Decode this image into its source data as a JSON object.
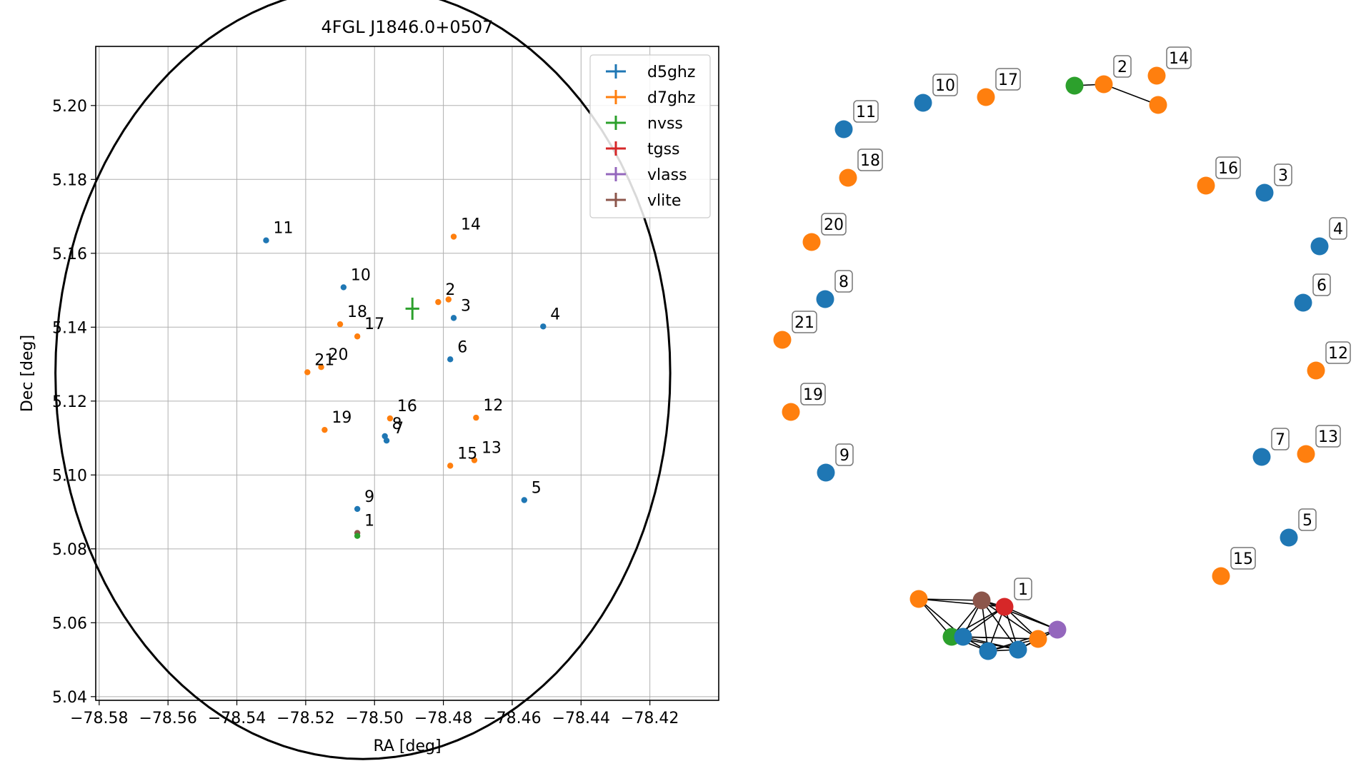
{
  "chart_data": [
    {
      "type": "scatter",
      "title": "4FGL J1846.0+0507",
      "xlabel": "RA [deg]",
      "ylabel": "Dec [deg]",
      "xlim": [
        -78.581,
        -78.4
      ],
      "ylim": [
        5.039,
        5.216
      ],
      "xticks": [
        -78.58,
        -78.56,
        -78.54,
        -78.52,
        -78.5,
        -78.48,
        -78.46,
        -78.44,
        -78.42
      ],
      "xtick_labels": [
        "−78.58",
        "−78.56",
        "−78.54",
        "−78.52",
        "−78.50",
        "−78.48",
        "−78.46",
        "−78.44",
        "−78.42"
      ],
      "yticks": [
        5.04,
        5.06,
        5.08,
        5.1,
        5.12,
        5.14,
        5.16,
        5.18,
        5.2
      ],
      "ytick_labels": [
        "5.04",
        "5.06",
        "5.08",
        "5.10",
        "5.12",
        "5.14",
        "5.16",
        "5.18",
        "5.20"
      ],
      "grid": true,
      "legend_position": "top-right",
      "colors": {
        "d5ghz": "#1f77b4",
        "d7ghz": "#ff7f0e",
        "nvss": "#2ca02c",
        "tgss": "#d62728",
        "vlass": "#9467bd",
        "vlite": "#8c564b"
      },
      "legend": [
        {
          "name": "d5ghz",
          "color": "#1f77b4"
        },
        {
          "name": "d7ghz",
          "color": "#ff7f0e"
        },
        {
          "name": "nvss",
          "color": "#2ca02c"
        },
        {
          "name": "tgss",
          "color": "#d62728"
        },
        {
          "name": "vlass",
          "color": "#9467bd"
        },
        {
          "name": "vlite",
          "color": "#8c564b"
        }
      ],
      "ellipse": {
        "center": [
          -78.5034,
          5.1276
        ],
        "axes": [
          0.0893,
          0.1045
        ]
      },
      "nvss_source": {
        "ra": -78.489,
        "dec": 5.145,
        "ra_err": 0.002,
        "dec_err": 0.003
      },
      "points": [
        {
          "label": "1",
          "ra": -78.505,
          "dec": 5.0843,
          "series": "vlite"
        },
        {
          "label": "",
          "ra": -78.505,
          "dec": 5.0835,
          "series": "nvss"
        },
        {
          "label": "2",
          "ra": -78.4815,
          "dec": 5.1468,
          "series": "d7ghz"
        },
        {
          "label": "",
          "ra": -78.4785,
          "dec": 5.1475,
          "series": "d7ghz"
        },
        {
          "label": "3",
          "ra": -78.477,
          "dec": 5.1425,
          "series": "d5ghz"
        },
        {
          "label": "4",
          "ra": -78.451,
          "dec": 5.1402,
          "series": "d5ghz"
        },
        {
          "label": "5",
          "ra": -78.4565,
          "dec": 5.0932,
          "series": "d5ghz"
        },
        {
          "label": "6",
          "ra": -78.478,
          "dec": 5.1313,
          "series": "d5ghz"
        },
        {
          "label": "7",
          "ra": -78.4965,
          "dec": 5.1093,
          "series": "d5ghz"
        },
        {
          "label": "8",
          "ra": -78.497,
          "dec": 5.1105,
          "series": "d5ghz"
        },
        {
          "label": "9",
          "ra": -78.505,
          "dec": 5.0908,
          "series": "d5ghz"
        },
        {
          "label": "10",
          "ra": -78.509,
          "dec": 5.1508,
          "series": "d5ghz"
        },
        {
          "label": "11",
          "ra": -78.5315,
          "dec": 5.1635,
          "series": "d5ghz"
        },
        {
          "label": "12",
          "ra": -78.4705,
          "dec": 5.1155,
          "series": "d7ghz"
        },
        {
          "label": "13",
          "ra": -78.471,
          "dec": 5.104,
          "series": "d7ghz"
        },
        {
          "label": "14",
          "ra": -78.477,
          "dec": 5.1645,
          "series": "d7ghz"
        },
        {
          "label": "15",
          "ra": -78.478,
          "dec": 5.1025,
          "series": "d7ghz"
        },
        {
          "label": "16",
          "ra": -78.4955,
          "dec": 5.1153,
          "series": "d7ghz"
        },
        {
          "label": "17",
          "ra": -78.505,
          "dec": 5.1375,
          "series": "d7ghz"
        },
        {
          "label": "18",
          "ra": -78.51,
          "dec": 5.1408,
          "series": "d7ghz"
        },
        {
          "label": "19",
          "ra": -78.5145,
          "dec": 5.1122,
          "series": "d7ghz"
        },
        {
          "label": "20",
          "ra": -78.5155,
          "dec": 5.1292,
          "series": "d7ghz"
        },
        {
          "label": "21",
          "ra": -78.5195,
          "dec": 5.1278,
          "series": "d7ghz"
        }
      ]
    },
    {
      "type": "network",
      "nodes": [
        {
          "id": "2",
          "label": "2",
          "series": "d7ghz"
        },
        {
          "id": "2b",
          "label": "",
          "series": "d7ghz"
        },
        {
          "id": "2n",
          "label": "",
          "series": "nvss"
        },
        {
          "id": "3",
          "label": "3",
          "series": "d5ghz"
        },
        {
          "id": "4",
          "label": "4",
          "series": "d5ghz"
        },
        {
          "id": "5",
          "label": "5",
          "series": "d5ghz"
        },
        {
          "id": "6",
          "label": "6",
          "series": "d5ghz"
        },
        {
          "id": "7",
          "label": "7",
          "series": "d5ghz"
        },
        {
          "id": "8",
          "label": "8",
          "series": "d5ghz"
        },
        {
          "id": "9",
          "label": "9",
          "series": "d5ghz"
        },
        {
          "id": "10",
          "label": "10",
          "series": "d5ghz"
        },
        {
          "id": "11",
          "label": "11",
          "series": "d5ghz"
        },
        {
          "id": "12",
          "label": "12",
          "series": "d7ghz"
        },
        {
          "id": "13",
          "label": "13",
          "series": "d7ghz"
        },
        {
          "id": "14",
          "label": "14",
          "series": "d7ghz"
        },
        {
          "id": "15",
          "label": "15",
          "series": "d7ghz"
        },
        {
          "id": "16",
          "label": "16",
          "series": "d7ghz"
        },
        {
          "id": "17",
          "label": "17",
          "series": "d7ghz"
        },
        {
          "id": "18",
          "label": "18",
          "series": "d7ghz"
        },
        {
          "id": "19",
          "label": "19",
          "series": "d7ghz"
        },
        {
          "id": "20",
          "label": "20",
          "series": "d7ghz"
        },
        {
          "id": "21",
          "label": "21",
          "series": "d7ghz"
        },
        {
          "id": "c1",
          "label": "",
          "series": "d7ghz"
        },
        {
          "id": "c2",
          "label": "",
          "series": "vlite"
        },
        {
          "id": "c3",
          "label": "1",
          "series": "tgss"
        },
        {
          "id": "c4",
          "label": "",
          "series": "nvss"
        },
        {
          "id": "c5",
          "label": "",
          "series": "d5ghz"
        },
        {
          "id": "c6",
          "label": "",
          "series": "d5ghz"
        },
        {
          "id": "c7",
          "label": "",
          "series": "d5ghz"
        },
        {
          "id": "c8",
          "label": "",
          "series": "d7ghz"
        },
        {
          "id": "c9",
          "label": "",
          "series": "vlass"
        }
      ],
      "edges": [
        [
          "2n",
          "2"
        ],
        [
          "2",
          "2b"
        ],
        [
          "c1",
          "c2"
        ],
        [
          "c1",
          "c3"
        ],
        [
          "c1",
          "c4"
        ],
        [
          "c1",
          "c5"
        ],
        [
          "c2",
          "c3"
        ],
        [
          "c2",
          "c4"
        ],
        [
          "c2",
          "c5"
        ],
        [
          "c2",
          "c6"
        ],
        [
          "c2",
          "c7"
        ],
        [
          "c2",
          "c8"
        ],
        [
          "c2",
          "c9"
        ],
        [
          "c3",
          "c4"
        ],
        [
          "c3",
          "c5"
        ],
        [
          "c3",
          "c6"
        ],
        [
          "c3",
          "c7"
        ],
        [
          "c3",
          "c8"
        ],
        [
          "c3",
          "c9"
        ],
        [
          "c4",
          "c5"
        ],
        [
          "c4",
          "c6"
        ],
        [
          "c4",
          "c7"
        ],
        [
          "c4",
          "c8"
        ],
        [
          "c5",
          "c6"
        ],
        [
          "c5",
          "c7"
        ],
        [
          "c5",
          "c8"
        ],
        [
          "c6",
          "c7"
        ],
        [
          "c6",
          "c8"
        ],
        [
          "c6",
          "c9"
        ],
        [
          "c7",
          "c8"
        ],
        [
          "c7",
          "c9"
        ],
        [
          "c8",
          "c9"
        ]
      ]
    }
  ]
}
